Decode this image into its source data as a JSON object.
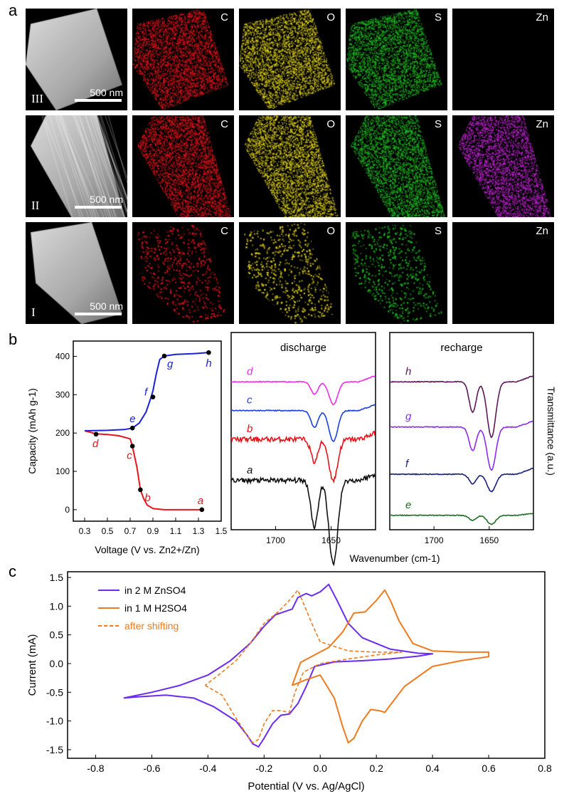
{
  "panel_labels": {
    "a": "a",
    "b": "b",
    "c": "c"
  },
  "panel_a": {
    "element_labels": [
      "C",
      "O",
      "S",
      "Zn"
    ],
    "rows": [
      {
        "label": "III",
        "scale": "500 nm"
      },
      {
        "label": "II",
        "scale": "500 nm"
      },
      {
        "label": "I",
        "scale": "500 nm"
      }
    ],
    "colors": {
      "C": "#e8141c",
      "O": "#e0d21a",
      "S": "#1fbf22",
      "Zn": "#c024d0"
    }
  },
  "chart_data": [
    {
      "type": "line",
      "panel": "b-left",
      "xlabel": "Voltage (V vs. Zn2+/Zn)",
      "ylabel": "Capacity (mAh g-1)",
      "xlim": [
        0.2,
        1.5
      ],
      "ylim": [
        -30,
        440
      ],
      "xticks": [
        "0.3",
        "0.5",
        "0.7",
        "0.9",
        "1.1",
        "1.3",
        "1.5"
      ],
      "yticks": [
        "0",
        "100",
        "200",
        "300",
        "400"
      ],
      "series": [
        {
          "name": "discharge",
          "color": "#e8141c",
          "x": [
            1.33,
            1.0,
            0.9,
            0.85,
            0.82,
            0.79,
            0.76,
            0.72,
            0.7,
            0.6,
            0.5,
            0.4,
            0.3
          ],
          "y": [
            0,
            0,
            3,
            12,
            28,
            52,
            110,
            165,
            185,
            193,
            196,
            198,
            206
          ]
        },
        {
          "name": "charge",
          "color": "#1a22d8",
          "x": [
            0.3,
            0.5,
            0.65,
            0.72,
            0.78,
            0.84,
            0.88,
            0.9,
            0.93,
            0.96,
            1.0,
            1.1,
            1.25,
            1.39
          ],
          "y": [
            206,
            207,
            209,
            213,
            226,
            255,
            290,
            310,
            355,
            392,
            401,
            405,
            407,
            410
          ]
        }
      ],
      "points": [
        {
          "label": "a",
          "x": 1.33,
          "y": 0,
          "color": "#e8141c"
        },
        {
          "label": "b",
          "x": 0.79,
          "y": 52,
          "color": "#e8141c"
        },
        {
          "label": "c",
          "x": 0.72,
          "y": 166,
          "color": "#e8141c"
        },
        {
          "label": "d",
          "x": 0.4,
          "y": 197,
          "color": "#e8141c"
        },
        {
          "label": "e",
          "x": 0.72,
          "y": 213,
          "color": "#1a22d8"
        },
        {
          "label": "f",
          "x": 0.9,
          "y": 294,
          "color": "#1a22d8"
        },
        {
          "label": "g",
          "x": 1.0,
          "y": 401,
          "color": "#1a22d8"
        },
        {
          "label": "h",
          "x": 1.39,
          "y": 410,
          "color": "#1a22d8"
        }
      ]
    },
    {
      "type": "line",
      "panel": "b-middle",
      "title": "discharge",
      "xlabel": "Wavenumber (cm-1)",
      "xlim": [
        1740,
        1610
      ],
      "xticks": [
        "1700",
        "1650"
      ],
      "series": [
        {
          "name": "d",
          "color": "#ee2ee6",
          "offset": 3.6,
          "depth": 0.55
        },
        {
          "name": "c",
          "color": "#1a3ee0",
          "offset": 2.9,
          "depth": 0.75
        },
        {
          "name": "b",
          "color": "#e8141c",
          "offset": 2.2,
          "depth": 1.0
        },
        {
          "name": "a",
          "color": "#111111",
          "offset": 1.2,
          "depth": 2.05
        }
      ]
    },
    {
      "type": "line",
      "panel": "b-right",
      "title": "recharge",
      "ylabel": "Transmittance (a.u.)",
      "xlim": [
        1740,
        1610
      ],
      "xticks": [
        "1700",
        "1650"
      ],
      "series": [
        {
          "name": "h",
          "color": "#5a1858",
          "offset": 3.6,
          "depth": 1.35
        },
        {
          "name": "g",
          "color": "#8a2cf0",
          "offset": 2.5,
          "depth": 1.05
        },
        {
          "name": "f",
          "color": "#161e7a",
          "offset": 1.35,
          "depth": 0.42
        },
        {
          "name": "e",
          "color": "#1d6e24",
          "offset": 0.35,
          "depth": 0.22
        }
      ]
    },
    {
      "type": "line",
      "panel": "c",
      "xlabel": "Potential (V vs. Ag/AgCl)",
      "ylabel": "Current (mA)",
      "xlim": [
        -0.9,
        0.8
      ],
      "ylim": [
        -1.65,
        1.6
      ],
      "xticks": [
        "-0.8",
        "-0.6",
        "-0.4",
        "-0.2",
        "0.0",
        "0.2",
        "0.4",
        "0.6",
        "0.8"
      ],
      "yticks": [
        "-1.5",
        "-1.0",
        "-0.5",
        "0.0",
        "0.5",
        "1.0",
        "1.5"
      ],
      "legend": [
        "in 2 M ZnSO4",
        "in 1 M H2SO4",
        "after shifting"
      ],
      "series": [
        {
          "name": "in 2 M ZnSO4",
          "color": "#6a2cf0",
          "x": [
            -0.7,
            -0.65,
            -0.55,
            -0.45,
            -0.38,
            -0.3,
            -0.26,
            -0.24,
            -0.22,
            -0.2,
            -0.17,
            -0.14,
            -0.11,
            -0.08,
            -0.05,
            -0.02,
            0.05,
            0.15,
            0.25,
            0.35,
            0.4,
            0.35,
            0.25,
            0.15,
            0.1,
            0.06,
            0.03,
            0.0,
            -0.03,
            -0.05,
            -0.08,
            -0.1,
            -0.13,
            -0.16,
            -0.2,
            -0.25,
            -0.32,
            -0.4,
            -0.5,
            -0.6,
            -0.7
          ],
          "y": [
            -0.6,
            -0.58,
            -0.55,
            -0.6,
            -0.75,
            -1.0,
            -1.25,
            -1.4,
            -1.45,
            -1.3,
            -1.05,
            -0.9,
            -0.88,
            -0.7,
            -0.4,
            -0.05,
            0.03,
            0.05,
            0.08,
            0.13,
            0.17,
            0.18,
            0.25,
            0.45,
            0.7,
            1.1,
            1.38,
            1.25,
            1.18,
            1.22,
            1.15,
            0.95,
            0.9,
            0.85,
            0.65,
            0.35,
            0.05,
            -0.2,
            -0.38,
            -0.5,
            -0.6
          ]
        },
        {
          "name": "in 1 M H2SO4",
          "color": "#f07a1e",
          "x": [
            -0.1,
            -0.05,
            0.0,
            0.05,
            0.08,
            0.1,
            0.12,
            0.15,
            0.18,
            0.21,
            0.23,
            0.3,
            0.4,
            0.5,
            0.6,
            0.6,
            0.5,
            0.4,
            0.33,
            0.28,
            0.25,
            0.23,
            0.2,
            0.16,
            0.12,
            0.08,
            0.03,
            -0.02,
            -0.07,
            -0.1
          ],
          "y": [
            -0.38,
            -0.28,
            -0.2,
            -0.6,
            -1.1,
            -1.38,
            -1.3,
            -1.0,
            -0.8,
            -0.82,
            -0.85,
            -0.4,
            -0.05,
            0.05,
            0.12,
            0.2,
            0.2,
            0.22,
            0.35,
            0.75,
            1.1,
            1.28,
            1.1,
            0.9,
            0.88,
            0.55,
            0.28,
            0.15,
            0.02,
            -0.38
          ]
        },
        {
          "name": "after shifting",
          "color": "#f07a1e",
          "dashed": true,
          "x": [
            -0.41,
            -0.35,
            -0.3,
            -0.26,
            -0.24,
            -0.22,
            -0.2,
            -0.17,
            -0.14,
            -0.11,
            -0.09,
            -0.06,
            0.0,
            0.1,
            0.2,
            0.29,
            0.2,
            0.1,
            0.0,
            -0.03,
            -0.06,
            -0.08,
            -0.11,
            -0.15,
            -0.2,
            -0.25,
            -0.3,
            -0.35,
            -0.41
          ],
          "y": [
            -0.38,
            -0.55,
            -0.95,
            -1.25,
            -1.38,
            -1.32,
            -1.05,
            -0.82,
            -0.82,
            -0.85,
            -0.5,
            -0.15,
            0.0,
            0.08,
            0.15,
            0.2,
            0.2,
            0.22,
            0.38,
            0.7,
            1.05,
            1.28,
            1.1,
            0.9,
            0.7,
            0.35,
            0.05,
            -0.15,
            -0.38
          ]
        }
      ]
    }
  ]
}
